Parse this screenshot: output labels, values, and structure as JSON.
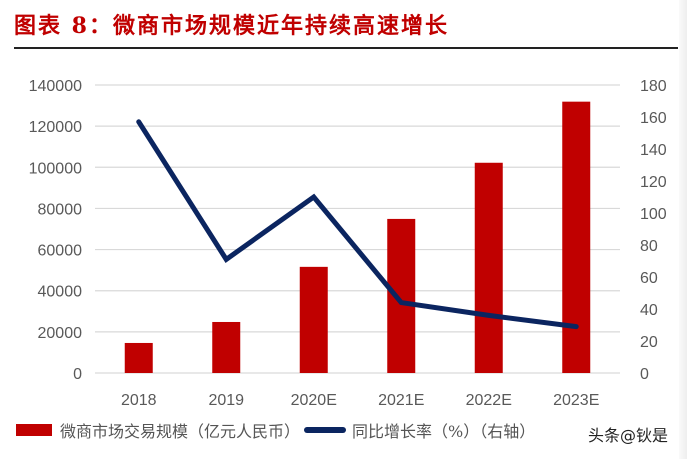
{
  "title": "图表 8：微商市场规模近年持续高速增长",
  "legend": {
    "bar_label": "微商市场交易规模（亿元人民币）",
    "line_label": "同比增长率（%）（右轴）"
  },
  "watermark": "头条@钬是",
  "colors": {
    "bar": "#c00000",
    "line": "#0b2560",
    "title": "#c00000",
    "grid": "#d9d9d9",
    "tick_text": "#595959"
  },
  "chart_data": {
    "type": "bar",
    "title": "图表 8：微商市场规模近年持续高速增长",
    "categories": [
      "2018",
      "2019",
      "2020E",
      "2021E",
      "2022E",
      "2023E"
    ],
    "series": [
      {
        "name": "微商市场交易规模（亿元人民币）",
        "type": "bar",
        "axis": "left",
        "values": [
          14600,
          24800,
          51600,
          74900,
          102200,
          131900
        ]
      },
      {
        "name": "同比增长率（%）（右轴）",
        "type": "line",
        "axis": "right",
        "values": [
          157,
          71,
          110,
          44,
          36,
          29
        ]
      }
    ],
    "xlabel": "",
    "ylabel": "",
    "ylim": [
      0,
      140000
    ],
    "y2lim": [
      0,
      180
    ],
    "yticks": [
      "0",
      "20000",
      "40000",
      "60000",
      "80000",
      "100000",
      "120000",
      "140000"
    ],
    "y2ticks": [
      "0",
      "20",
      "40",
      "60",
      "80",
      "100",
      "120",
      "140",
      "160",
      "180"
    ],
    "grid": true,
    "legend_position": "bottom"
  }
}
